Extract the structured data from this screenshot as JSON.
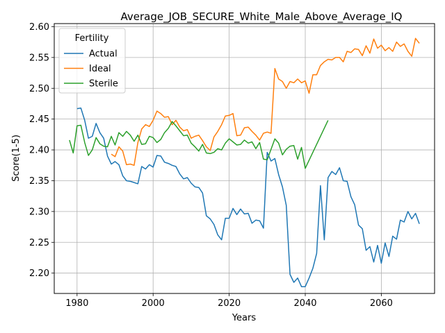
{
  "chart_data": {
    "type": "line",
    "title": "Average_JOB_SECURE_White_Male_Above_Average_IQ",
    "xlabel": "Years",
    "ylabel": "Score(1-5)",
    "xlim": [
      1974,
      2074
    ],
    "ylim": [
      2.167,
      2.605
    ],
    "x_ticks": [
      1980,
      2000,
      2020,
      2040,
      2060
    ],
    "y_ticks": [
      2.2,
      2.25,
      2.3,
      2.35,
      2.4,
      2.45,
      2.5,
      2.55,
      2.6
    ],
    "grid": true,
    "legend": {
      "title": "Fertility",
      "position": "upper-left"
    },
    "series": [
      {
        "name": "Actual",
        "color": "#1f77b4",
        "x": [
          1980,
          1981,
          1982,
          1983,
          1984,
          1985,
          1986,
          1987,
          1988,
          1989,
          1990,
          1991,
          1992,
          1993,
          1994,
          1995,
          1996,
          1997,
          1998,
          1999,
          2000,
          2001,
          2002,
          2003,
          2004,
          2005,
          2006,
          2007,
          2008,
          2009,
          2010,
          2011,
          2012,
          2013,
          2014,
          2015,
          2016,
          2017,
          2018,
          2019,
          2020,
          2021,
          2022,
          2023,
          2024,
          2025,
          2026,
          2027,
          2028,
          2029,
          2030,
          2031,
          2032,
          2033,
          2034,
          2035,
          2036,
          2037,
          2038,
          2039,
          2040,
          2041,
          2042,
          2043,
          2044,
          2045,
          2046,
          2047,
          2048,
          2049,
          2050,
          2051,
          2052,
          2053,
          2054,
          2055,
          2056,
          2057,
          2058,
          2059,
          2060,
          2061,
          2062,
          2063,
          2064,
          2065,
          2066,
          2067,
          2068,
          2069,
          2070
        ],
        "values": [
          2.467,
          2.468,
          2.448,
          2.419,
          2.422,
          2.443,
          2.428,
          2.419,
          2.39,
          2.377,
          2.381,
          2.376,
          2.358,
          2.35,
          2.349,
          2.347,
          2.345,
          2.373,
          2.369,
          2.376,
          2.372,
          2.391,
          2.39,
          2.38,
          2.378,
          2.375,
          2.373,
          2.361,
          2.353,
          2.355,
          2.346,
          2.34,
          2.339,
          2.33,
          2.293,
          2.288,
          2.279,
          2.262,
          2.254,
          2.289,
          2.289,
          2.305,
          2.295,
          2.304,
          2.296,
          2.297,
          2.281,
          2.286,
          2.285,
          2.273,
          2.396,
          2.382,
          2.386,
          2.36,
          2.34,
          2.31,
          2.198,
          2.185,
          2.192,
          2.178,
          2.178,
          2.192,
          2.208,
          2.232,
          2.342,
          2.254,
          2.355,
          2.365,
          2.36,
          2.371,
          2.35,
          2.349,
          2.324,
          2.311,
          2.278,
          2.272,
          2.237,
          2.243,
          2.218,
          2.245,
          2.216,
          2.249,
          2.227,
          2.26,
          2.255,
          2.286,
          2.283,
          2.3,
          2.288,
          2.297,
          2.28
        ]
      },
      {
        "name": "Ideal",
        "color": "#ff7f0e",
        "x": [
          1989,
          1990,
          1991,
          1992,
          1993,
          1994,
          1995,
          1996,
          1997,
          1998,
          1999,
          2000,
          2001,
          2002,
          2003,
          2004,
          2005,
          2006,
          2007,
          2008,
          2009,
          2010,
          2011,
          2012,
          2013,
          2014,
          2015,
          2016,
          2017,
          2018,
          2019,
          2020,
          2021,
          2022,
          2023,
          2024,
          2025,
          2026,
          2027,
          2028,
          2029,
          2030,
          2031,
          2032,
          2033,
          2034,
          2035,
          2036,
          2037,
          2038,
          2039,
          2040,
          2041,
          2042,
          2043,
          2044,
          2045,
          2046,
          2047,
          2048,
          2049,
          2050,
          2051,
          2052,
          2053,
          2054,
          2055,
          2056,
          2057,
          2058,
          2059,
          2060,
          2061,
          2062,
          2063,
          2064,
          2065,
          2066,
          2067,
          2068,
          2069,
          2070
        ],
        "values": [
          2.393,
          2.389,
          2.405,
          2.398,
          2.376,
          2.377,
          2.375,
          2.412,
          2.434,
          2.441,
          2.438,
          2.448,
          2.463,
          2.459,
          2.453,
          2.454,
          2.441,
          2.448,
          2.437,
          2.431,
          2.433,
          2.419,
          2.422,
          2.424,
          2.415,
          2.405,
          2.399,
          2.421,
          2.43,
          2.441,
          2.455,
          2.456,
          2.459,
          2.423,
          2.424,
          2.436,
          2.437,
          2.43,
          2.424,
          2.416,
          2.427,
          2.429,
          2.427,
          2.532,
          2.515,
          2.511,
          2.5,
          2.511,
          2.509,
          2.515,
          2.509,
          2.512,
          2.492,
          2.522,
          2.522,
          2.537,
          2.543,
          2.547,
          2.546,
          2.55,
          2.55,
          2.543,
          2.56,
          2.558,
          2.564,
          2.563,
          2.553,
          2.569,
          2.557,
          2.58,
          2.565,
          2.57,
          2.561,
          2.566,
          2.56,
          2.575,
          2.568,
          2.572,
          2.56,
          2.552,
          2.581,
          2.573
        ]
      },
      {
        "name": "Sterile",
        "color": "#2ca02c",
        "x": [
          1978,
          1979,
          1980,
          1981,
          1982,
          1983,
          1984,
          1985,
          1986,
          1987,
          1988,
          1989,
          1990,
          1991,
          1992,
          1993,
          1994,
          1995,
          1996,
          1997,
          1998,
          1999,
          2000,
          2001,
          2002,
          2003,
          2004,
          2005,
          2006,
          2007,
          2008,
          2009,
          2010,
          2011,
          2012,
          2013,
          2014,
          2015,
          2016,
          2017,
          2018,
          2019,
          2020,
          2021,
          2022,
          2023,
          2024,
          2025,
          2026,
          2027,
          2028,
          2029,
          2030,
          2031,
          2032,
          2033,
          2034,
          2035,
          2036,
          2037,
          2038,
          2039,
          2040,
          2046
        ],
        "values": [
          2.416,
          2.395,
          2.439,
          2.44,
          2.412,
          2.391,
          2.4,
          2.42,
          2.41,
          2.406,
          2.405,
          2.422,
          2.408,
          2.428,
          2.422,
          2.43,
          2.424,
          2.414,
          2.424,
          2.409,
          2.41,
          2.422,
          2.42,
          2.412,
          2.417,
          2.428,
          2.435,
          2.446,
          2.439,
          2.431,
          2.423,
          2.424,
          2.411,
          2.405,
          2.398,
          2.409,
          2.395,
          2.394,
          2.396,
          2.402,
          2.4,
          2.411,
          2.418,
          2.413,
          2.408,
          2.409,
          2.416,
          2.411,
          2.413,
          2.402,
          2.412,
          2.385,
          2.384,
          2.401,
          2.418,
          2.411,
          2.392,
          2.401,
          2.406,
          2.407,
          2.385,
          2.404,
          2.37,
          2.448
        ]
      }
    ]
  }
}
